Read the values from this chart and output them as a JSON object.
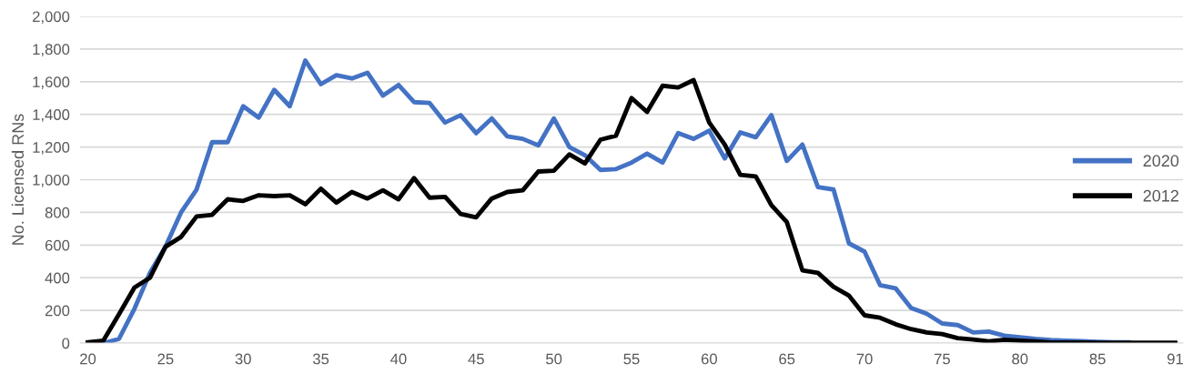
{
  "chart_data": {
    "type": "line",
    "ylabel": "No. Licensed RNs",
    "categories": [
      "20",
      null,
      null,
      null,
      null,
      "25",
      null,
      null,
      null,
      null,
      "30",
      null,
      null,
      null,
      null,
      "35",
      null,
      null,
      null,
      null,
      "40",
      null,
      null,
      null,
      null,
      "45",
      null,
      null,
      null,
      null,
      "50",
      null,
      null,
      null,
      null,
      "55",
      null,
      null,
      null,
      null,
      "60",
      null,
      null,
      null,
      null,
      "65",
      null,
      null,
      null,
      null,
      "70",
      null,
      null,
      null,
      null,
      "75",
      null,
      null,
      null,
      null,
      "80",
      null,
      null,
      null,
      null,
      "85",
      null,
      null,
      null,
      null,
      "91"
    ],
    "series": [
      {
        "name": "2020",
        "color": "#4472c4",
        "values": [
          0,
          0,
          25,
          210,
          430,
          590,
          800,
          940,
          1230,
          1230,
          1450,
          1380,
          1550,
          1450,
          1730,
          1585,
          1640,
          1620,
          1655,
          1515,
          1580,
          1475,
          1470,
          1350,
          1395,
          1285,
          1375,
          1265,
          1250,
          1210,
          1375,
          1200,
          1150,
          1060,
          1065,
          1105,
          1160,
          1105,
          1285,
          1250,
          1300,
          1130,
          1290,
          1260,
          1395,
          1115,
          1215,
          955,
          940,
          610,
          560,
          355,
          335,
          215,
          180,
          120,
          110,
          65,
          70,
          45,
          35,
          25,
          18,
          15,
          12,
          8,
          5,
          5,
          null,
          null,
          null
        ]
      },
      {
        "name": "2012",
        "color": "#000000",
        "values": [
          5,
          15,
          175,
          340,
          400,
          590,
          650,
          775,
          785,
          880,
          870,
          905,
          900,
          905,
          850,
          945,
          860,
          925,
          885,
          935,
          880,
          1010,
          890,
          895,
          790,
          770,
          885,
          925,
          935,
          1050,
          1055,
          1155,
          1100,
          1245,
          1270,
          1500,
          1415,
          1575,
          1565,
          1610,
          1350,
          1215,
          1030,
          1020,
          845,
          740,
          445,
          430,
          345,
          290,
          170,
          155,
          115,
          85,
          65,
          55,
          30,
          22,
          10,
          20,
          15,
          10,
          3,
          3,
          3,
          2,
          2,
          2,
          2,
          2,
          2
        ]
      }
    ],
    "ylim": [
      0,
      2000
    ],
    "yticks": [
      {
        "value": 0,
        "label": "0"
      },
      {
        "value": 200,
        "label": "200"
      },
      {
        "value": 400,
        "label": "400"
      },
      {
        "value": 600,
        "label": "600"
      },
      {
        "value": 800,
        "label": "800"
      },
      {
        "value": 1000,
        "label": "1,000"
      },
      {
        "value": 1200,
        "label": "1,200"
      },
      {
        "value": 1400,
        "label": "1,400"
      },
      {
        "value": 1600,
        "label": "1,600"
      },
      {
        "value": 1800,
        "label": "1,800"
      },
      {
        "value": 2000,
        "label": "2,000"
      }
    ],
    "grid": "y",
    "legend": "right",
    "marker": "none",
    "line_style": "solid"
  }
}
